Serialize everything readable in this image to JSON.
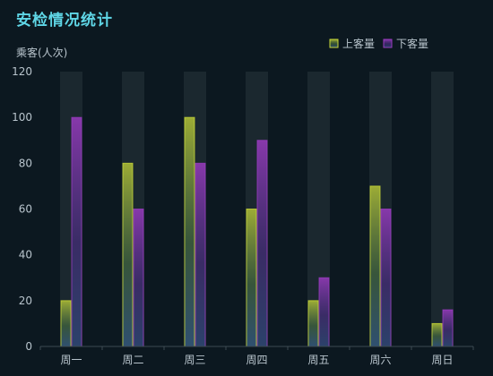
{
  "chart_data": {
    "type": "bar",
    "title": "安检情况统计",
    "ylabel": "乘客(人次)",
    "xlabel": "",
    "categories": [
      "周一",
      "周二",
      "周三",
      "周四",
      "周五",
      "周六",
      "周日"
    ],
    "series": [
      {
        "name": "上客量",
        "values": [
          20,
          80,
          100,
          60,
          20,
          70,
          10
        ]
      },
      {
        "name": "下客量",
        "values": [
          100,
          60,
          80,
          90,
          30,
          60,
          16
        ]
      }
    ],
    "ylim": [
      0,
      120
    ],
    "yticks": [
      0,
      20,
      40,
      60,
      80,
      100,
      120
    ],
    "legend": "top-right",
    "grid": false,
    "background_bars": true
  },
  "colors": {
    "background": "#0c1820",
    "title": "#5fd6e6",
    "text": "#b8c4cc",
    "axis": "#3d4a52",
    "shadow_band": "#1f2c33",
    "series1_top": "#c8d838",
    "series1_mid": "#4e7a45",
    "series1_bottom": "#3c6a9c",
    "series2_top": "#9a3bc0",
    "series2_mid": "#4e2f8a",
    "series2_bottom": "#34508a"
  }
}
